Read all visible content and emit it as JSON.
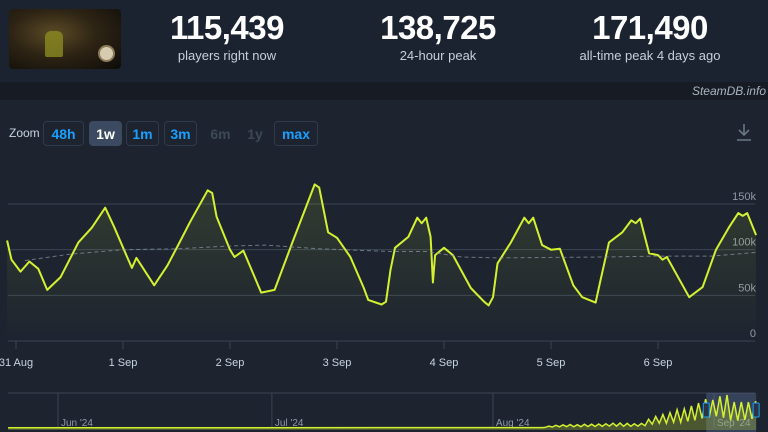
{
  "header": {
    "stats": [
      {
        "value": "115,439",
        "label": "players right now"
      },
      {
        "value": "138,725",
        "label": "24-hour peak"
      },
      {
        "value": "171,490",
        "label": "all-time peak 4 days ago"
      }
    ],
    "brand": "SteamDB.info"
  },
  "toolbar": {
    "zoom_label": "Zoom",
    "buttons": [
      {
        "label": "48h",
        "state": "enabled"
      },
      {
        "label": "1w",
        "state": "active"
      },
      {
        "label": "1m",
        "state": "enabled"
      },
      {
        "label": "3m",
        "state": "enabled"
      },
      {
        "label": "6m",
        "state": "disabled"
      },
      {
        "label": "1y",
        "state": "disabled"
      },
      {
        "label": "max",
        "state": "enabled"
      }
    ],
    "download_icon": "download-icon"
  },
  "colors": {
    "line": "#d4f131",
    "average": "#8f9aa6",
    "accent": "#1a9fff",
    "grid": "#3a4452"
  },
  "chart_data": {
    "type": "line",
    "y_ticks": [
      {
        "v": 0,
        "label": "0"
      },
      {
        "v": 50000,
        "label": "50k"
      },
      {
        "v": 100000,
        "label": "100k"
      },
      {
        "v": 150000,
        "label": "150k"
      }
    ],
    "ylim": [
      0,
      150000
    ],
    "x_ticks": [
      {
        "t": "2024-08-31T00:00",
        "label": "31 Aug"
      },
      {
        "t": "2024-09-01T00:00",
        "label": "1 Sep"
      },
      {
        "t": "2024-09-02T00:00",
        "label": "2 Sep"
      },
      {
        "t": "2024-09-03T00:00",
        "label": "3 Sep"
      },
      {
        "t": "2024-09-04T00:00",
        "label": "4 Sep"
      },
      {
        "t": "2024-09-05T00:00",
        "label": "5 Sep"
      },
      {
        "t": "2024-09-06T00:00",
        "label": "6 Sep"
      }
    ],
    "grid": true,
    "series": [
      {
        "style": "solid",
        "points": [
          [
            "2024-08-30T22:00",
            110000
          ],
          [
            "2024-08-30T23:00",
            89000
          ],
          [
            "2024-08-31T01:00",
            76000
          ],
          [
            "2024-08-31T03:00",
            87000
          ],
          [
            "2024-08-31T05:00",
            79000
          ],
          [
            "2024-08-31T07:00",
            56000
          ],
          [
            "2024-08-31T10:00",
            70000
          ],
          [
            "2024-08-31T14:00",
            108000
          ],
          [
            "2024-08-31T17:00",
            124000
          ],
          [
            "2024-08-31T20:00",
            146000
          ],
          [
            "2024-08-31T22:00",
            125000
          ],
          [
            "2024-09-01T01:00",
            91000
          ],
          [
            "2024-09-01T02:00",
            80000
          ],
          [
            "2024-09-01T03:00",
            91000
          ],
          [
            "2024-09-01T07:00",
            61000
          ],
          [
            "2024-09-01T10:00",
            83000
          ],
          [
            "2024-09-01T13:00",
            111000
          ],
          [
            "2024-09-01T15:00",
            130000
          ],
          [
            "2024-09-01T19:00",
            165000
          ],
          [
            "2024-09-01T20:00",
            162000
          ],
          [
            "2024-09-01T21:00",
            136000
          ],
          [
            "2024-09-02T00:00",
            100000
          ],
          [
            "2024-09-02T01:00",
            92000
          ],
          [
            "2024-09-02T03:00",
            99000
          ],
          [
            "2024-09-02T07:00",
            53000
          ],
          [
            "2024-09-02T10:00",
            56000
          ],
          [
            "2024-09-02T14:00",
            108000
          ],
          [
            "2024-09-02T19:00",
            171490
          ],
          [
            "2024-09-02T20:00",
            168000
          ],
          [
            "2024-09-02T22:00",
            119000
          ],
          [
            "2024-09-03T00:00",
            113000
          ],
          [
            "2024-09-03T03:00",
            92000
          ],
          [
            "2024-09-03T06:00",
            58000
          ],
          [
            "2024-09-03T07:00",
            45000
          ],
          [
            "2024-09-03T10:00",
            40000
          ],
          [
            "2024-09-03T11:00",
            43000
          ],
          [
            "2024-09-03T12:00",
            78000
          ],
          [
            "2024-09-03T13:00",
            102000
          ],
          [
            "2024-09-03T16:00",
            114000
          ],
          [
            "2024-09-03T18:00",
            135000
          ],
          [
            "2024-09-03T19:00",
            129000
          ],
          [
            "2024-09-03T20:00",
            135000
          ],
          [
            "2024-09-03T21:00",
            114000
          ],
          [
            "2024-09-03T21:30",
            64000
          ],
          [
            "2024-09-03T22:00",
            94000
          ],
          [
            "2024-09-04T00:00",
            102000
          ],
          [
            "2024-09-04T02:00",
            94000
          ],
          [
            "2024-09-04T06:00",
            58000
          ],
          [
            "2024-09-04T09:00",
            43000
          ],
          [
            "2024-09-04T10:00",
            39000
          ],
          [
            "2024-09-04T11:00",
            48000
          ],
          [
            "2024-09-04T12:00",
            85000
          ],
          [
            "2024-09-04T15:00",
            108000
          ],
          [
            "2024-09-04T18:00",
            135000
          ],
          [
            "2024-09-04T19:00",
            129000
          ],
          [
            "2024-09-04T20:00",
            135000
          ],
          [
            "2024-09-04T22:00",
            105000
          ],
          [
            "2024-09-05T00:00",
            100000
          ],
          [
            "2024-09-05T02:00",
            101000
          ],
          [
            "2024-09-05T05:00",
            61000
          ],
          [
            "2024-09-05T07:00",
            48000
          ],
          [
            "2024-09-05T10:00",
            42000
          ],
          [
            "2024-09-05T11:00",
            64000
          ],
          [
            "2024-09-05T13:00",
            108000
          ],
          [
            "2024-09-05T16:00",
            119000
          ],
          [
            "2024-09-05T18:00",
            132000
          ],
          [
            "2024-09-05T19:00",
            129000
          ],
          [
            "2024-09-05T20:00",
            134000
          ],
          [
            "2024-09-05T22:00",
            96000
          ],
          [
            "2024-09-06T00:00",
            94000
          ],
          [
            "2024-09-06T01:00",
            89000
          ],
          [
            "2024-09-06T02:00",
            92000
          ],
          [
            "2024-09-06T07:00",
            48000
          ],
          [
            "2024-09-06T10:00",
            59000
          ],
          [
            "2024-09-06T13:00",
            100000
          ],
          [
            "2024-09-06T16:00",
            125000
          ],
          [
            "2024-09-06T18:00",
            140000
          ],
          [
            "2024-09-06T19:00",
            137000
          ],
          [
            "2024-09-06T20:00",
            140000
          ],
          [
            "2024-09-06T22:00",
            116000
          ]
        ]
      },
      {
        "style": "dashed",
        "points": [
          [
            "2024-08-31T02:00",
            88000
          ],
          [
            "2024-08-31T12:00",
            95000
          ],
          [
            "2024-09-01T00:00",
            100000
          ],
          [
            "2024-09-01T12:00",
            101000
          ],
          [
            "2024-09-02T00:00",
            104000
          ],
          [
            "2024-09-02T08:00",
            105000
          ],
          [
            "2024-09-02T20:00",
            101000
          ],
          [
            "2024-09-03T12:00",
            98000
          ],
          [
            "2024-09-03T20:00",
            98000
          ],
          [
            "2024-09-04T04:00",
            92000
          ],
          [
            "2024-09-04T12:00",
            91000
          ],
          [
            "2024-09-05T12:00",
            92000
          ],
          [
            "2024-09-06T00:00",
            93000
          ],
          [
            "2024-09-06T12:00",
            93000
          ],
          [
            "2024-09-06T22:00",
            97000
          ]
        ]
      }
    ]
  },
  "navigator": {
    "labels": [
      {
        "t": "2024-06-01",
        "label": "Jun '24"
      },
      {
        "t": "2024-07-01",
        "label": "Jul '24"
      },
      {
        "t": "2024-08-01",
        "label": "Aug '24"
      },
      {
        "t": "2024-09-01",
        "label": "Sep '24"
      }
    ],
    "selection": [
      "2024-08-30T22:00",
      "2024-09-06T22:00"
    ],
    "series": [
      [
        "2024-05-25T00:00",
        1000
      ],
      [
        "2024-08-08T00:00",
        2000
      ],
      [
        "2024-08-08T08:00",
        3000
      ],
      [
        "2024-08-08T20:00",
        10000
      ],
      [
        "2024-08-09T08:00",
        5000
      ],
      [
        "2024-08-09T20:00",
        14000
      ],
      [
        "2024-08-10T08:00",
        6000
      ],
      [
        "2024-08-10T20:00",
        16000
      ],
      [
        "2024-08-11T08:00",
        7000
      ],
      [
        "2024-08-11T20:00",
        18000
      ],
      [
        "2024-08-12T08:00",
        6000
      ],
      [
        "2024-08-12T20:00",
        17000
      ],
      [
        "2024-08-13T08:00",
        7000
      ],
      [
        "2024-08-13T20:00",
        19000
      ],
      [
        "2024-08-14T08:00",
        8000
      ],
      [
        "2024-08-14T20:00",
        20000
      ],
      [
        "2024-08-15T08:00",
        8000
      ],
      [
        "2024-08-15T20:00",
        21000
      ],
      [
        "2024-08-16T08:00",
        9000
      ],
      [
        "2024-08-16T20:00",
        22000
      ],
      [
        "2024-08-17T08:00",
        10000
      ],
      [
        "2024-08-17T20:00",
        25000
      ],
      [
        "2024-08-18T08:00",
        10000
      ],
      [
        "2024-08-18T20:00",
        26000
      ],
      [
        "2024-08-19T08:00",
        9000
      ],
      [
        "2024-08-19T20:00",
        24000
      ],
      [
        "2024-08-20T08:00",
        9000
      ],
      [
        "2024-08-20T20:00",
        22000
      ],
      [
        "2024-08-21T08:00",
        10000
      ],
      [
        "2024-08-21T20:00",
        24000
      ],
      [
        "2024-08-22T08:00",
        12000
      ],
      [
        "2024-08-22T20:00",
        45000
      ],
      [
        "2024-08-23T08:00",
        20000
      ],
      [
        "2024-08-23T20:00",
        60000
      ],
      [
        "2024-08-24T08:00",
        25000
      ],
      [
        "2024-08-24T20:00",
        70000
      ],
      [
        "2024-08-25T08:00",
        25000
      ],
      [
        "2024-08-25T20:00",
        80000
      ],
      [
        "2024-08-26T08:00",
        30000
      ],
      [
        "2024-08-26T20:00",
        95000
      ],
      [
        "2024-08-27T08:00",
        30000
      ],
      [
        "2024-08-27T20:00",
        100000
      ],
      [
        "2024-08-28T08:00",
        35000
      ],
      [
        "2024-08-28T20:00",
        115000
      ],
      [
        "2024-08-29T08:00",
        40000
      ],
      [
        "2024-08-29T20:00",
        130000
      ],
      [
        "2024-08-30T08:00",
        50000
      ],
      [
        "2024-08-30T20:00",
        150000
      ],
      [
        "2024-08-31T08:00",
        56000
      ],
      [
        "2024-08-31T20:00",
        146000
      ],
      [
        "2024-09-01T08:00",
        61000
      ],
      [
        "2024-09-01T20:00",
        165000
      ],
      [
        "2024-09-02T08:00",
        53000
      ],
      [
        "2024-09-02T20:00",
        171490
      ],
      [
        "2024-09-03T08:00",
        40000
      ],
      [
        "2024-09-03T20:00",
        135000
      ],
      [
        "2024-09-04T08:00",
        39000
      ],
      [
        "2024-09-04T20:00",
        135000
      ],
      [
        "2024-09-05T08:00",
        42000
      ],
      [
        "2024-09-05T20:00",
        134000
      ],
      [
        "2024-09-06T08:00",
        48000
      ],
      [
        "2024-09-06T20:00",
        140000
      ],
      [
        "2024-09-06T22:00",
        116000
      ]
    ]
  }
}
